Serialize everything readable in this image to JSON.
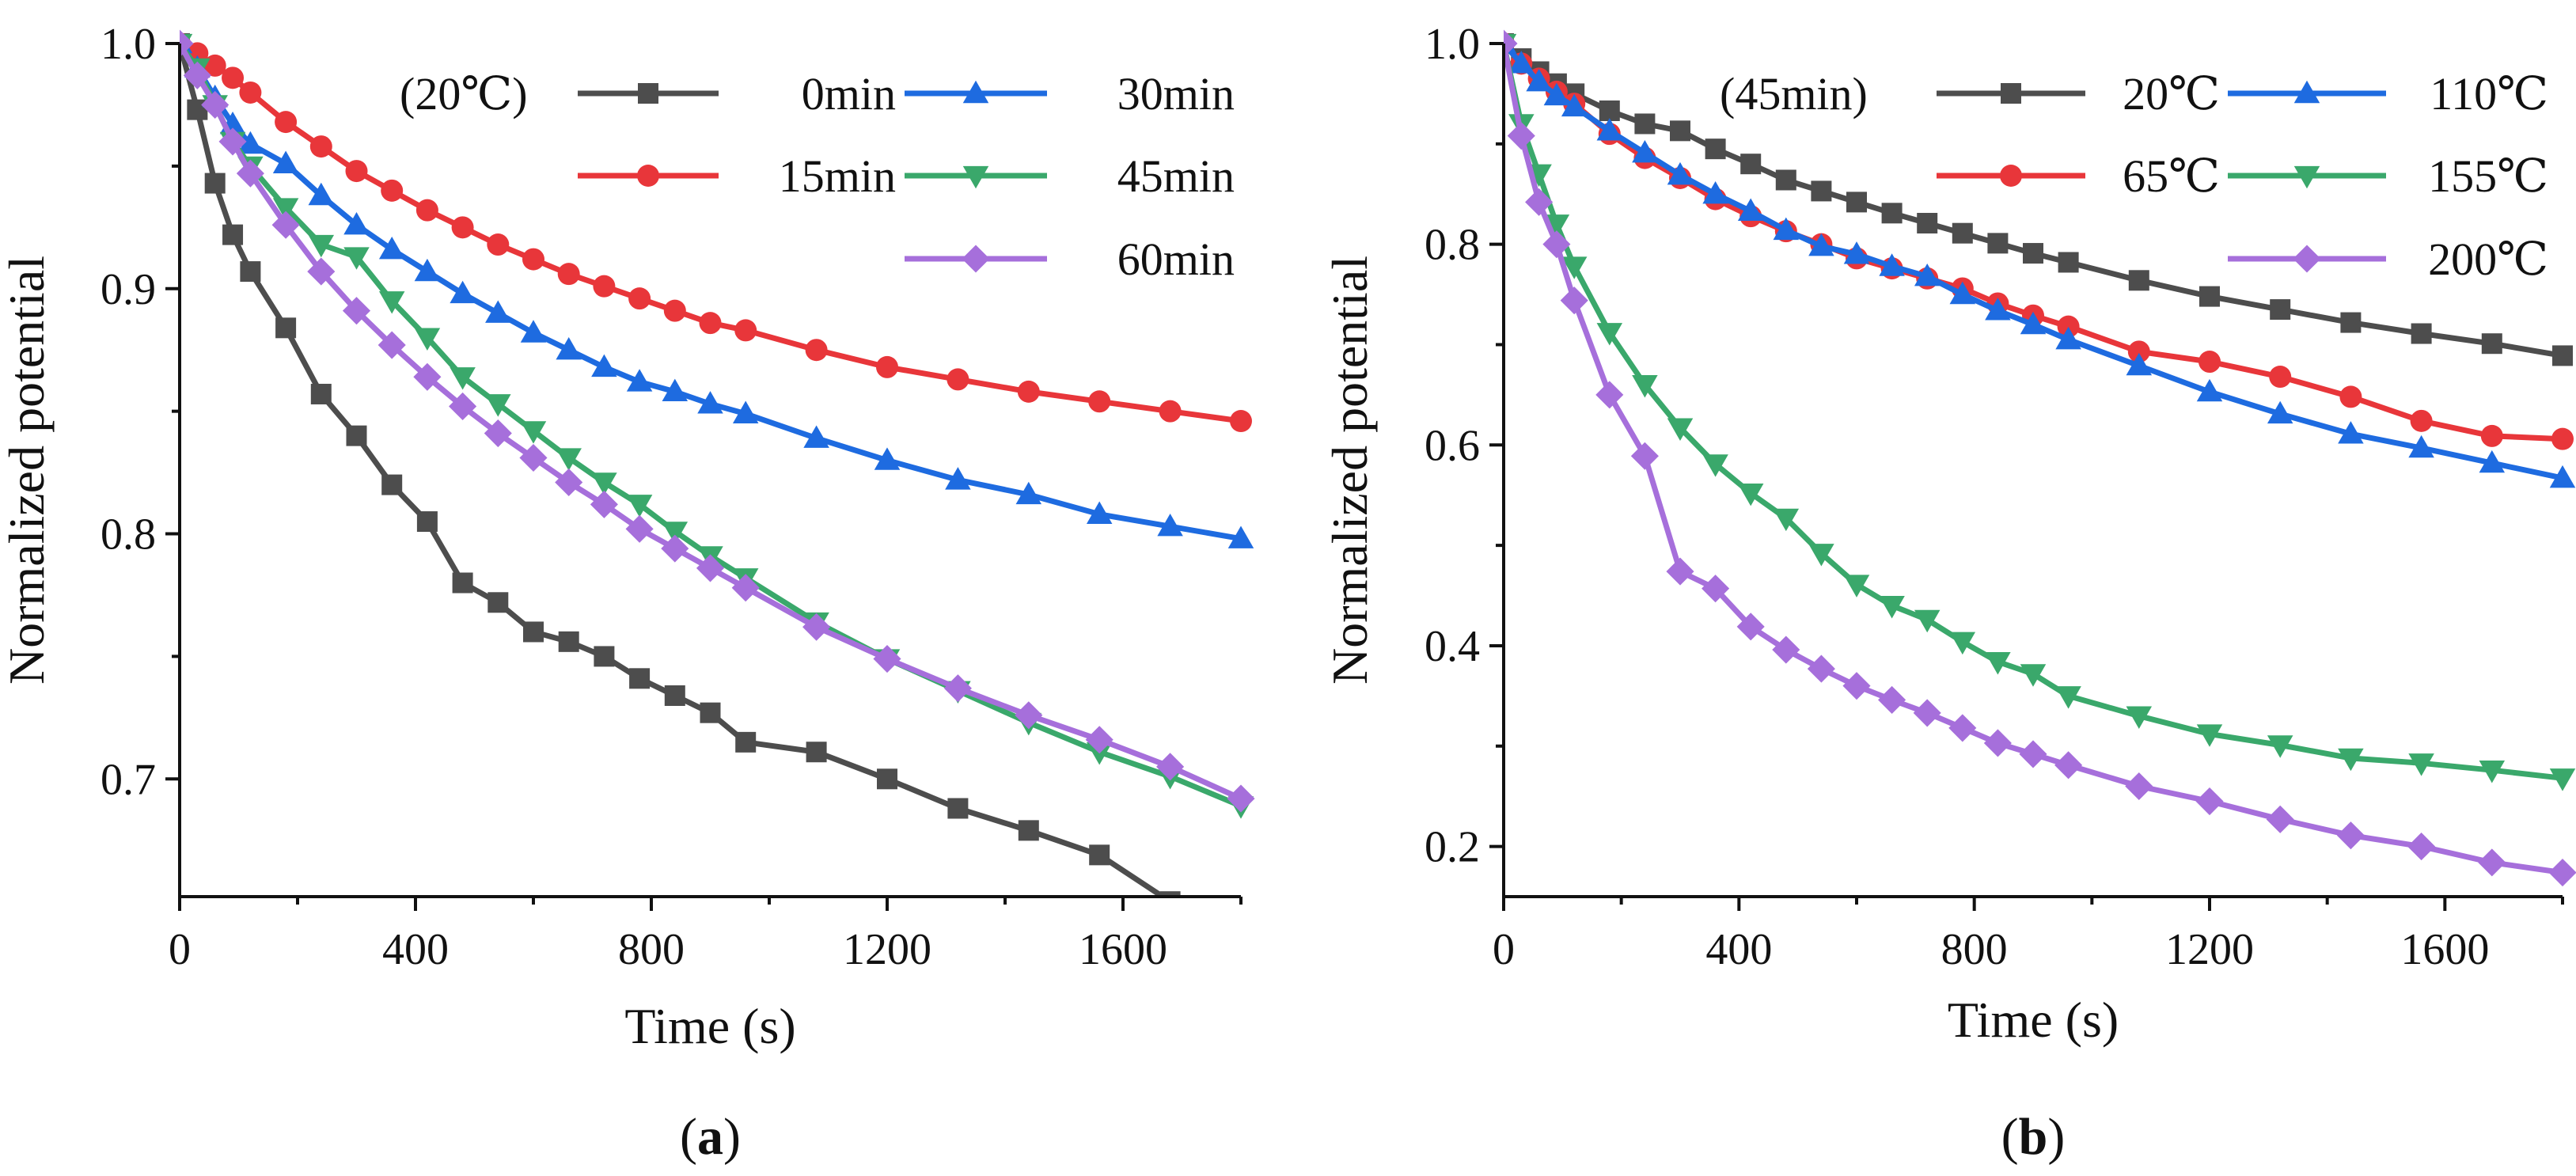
{
  "chart_data": [
    {
      "type": "line",
      "panel_label": "(a)",
      "annotation": "(20℃)",
      "xlabel": "Time (s)",
      "ylabel": "Normalized potential",
      "xlim": [
        0,
        1800
      ],
      "ylim": [
        0.652,
        1.0
      ],
      "xticks": [
        0,
        400,
        800,
        1200,
        1600
      ],
      "xtick_labels": [
        "0",
        "400",
        "800",
        "1200",
        "1600"
      ],
      "yticks": [
        0.7,
        0.8,
        0.9,
        1.0
      ],
      "ytick_labels": [
        "0.7",
        "0.8",
        "0.9",
        "1.0"
      ],
      "legend_position": "top-right",
      "series": [
        {
          "name": "0min",
          "color": "#4d4d4d",
          "marker": "square",
          "x": [
            0,
            30,
            60,
            90,
            120,
            180,
            240,
            300,
            360,
            420,
            480,
            540,
            600,
            660,
            720,
            780,
            840,
            900,
            960,
            1080,
            1200,
            1320,
            1440,
            1560,
            1680
          ],
          "y": [
            1.0,
            0.973,
            0.943,
            0.922,
            0.907,
            0.884,
            0.857,
            0.84,
            0.82,
            0.805,
            0.78,
            0.772,
            0.76,
            0.756,
            0.75,
            0.741,
            0.734,
            0.727,
            0.715,
            0.711,
            0.7,
            0.688,
            0.679,
            0.669,
            0.65
          ]
        },
        {
          "name": "15min",
          "color": "#e8363a",
          "marker": "circle",
          "x": [
            0,
            30,
            60,
            90,
            120,
            180,
            240,
            300,
            360,
            420,
            480,
            540,
            600,
            660,
            720,
            780,
            840,
            900,
            960,
            1080,
            1200,
            1320,
            1440,
            1560,
            1680,
            1800
          ],
          "y": [
            1.0,
            0.996,
            0.991,
            0.986,
            0.98,
            0.968,
            0.958,
            0.948,
            0.94,
            0.932,
            0.925,
            0.918,
            0.912,
            0.906,
            0.901,
            0.896,
            0.891,
            0.886,
            0.883,
            0.875,
            0.868,
            0.863,
            0.858,
            0.854,
            0.85,
            0.846
          ]
        },
        {
          "name": "30min",
          "color": "#1e6be0",
          "marker": "triangle-up",
          "x": [
            0,
            30,
            60,
            90,
            120,
            180,
            240,
            300,
            360,
            420,
            480,
            540,
            600,
            660,
            720,
            780,
            840,
            900,
            960,
            1080,
            1200,
            1320,
            1440,
            1560,
            1680,
            1800
          ],
          "y": [
            1.0,
            0.99,
            0.978,
            0.967,
            0.959,
            0.951,
            0.938,
            0.926,
            0.916,
            0.907,
            0.898,
            0.89,
            0.882,
            0.875,
            0.868,
            0.862,
            0.858,
            0.853,
            0.849,
            0.839,
            0.83,
            0.822,
            0.816,
            0.808,
            0.803,
            0.798
          ]
        },
        {
          "name": "45min",
          "color": "#3aa86b",
          "marker": "triangle-down",
          "x": [
            0,
            30,
            60,
            90,
            120,
            180,
            240,
            300,
            360,
            420,
            480,
            540,
            600,
            660,
            720,
            780,
            840,
            900,
            960,
            1080,
            1200,
            1320,
            1440,
            1560,
            1680,
            1800
          ],
          "y": [
            1.0,
            0.99,
            0.975,
            0.96,
            0.95,
            0.933,
            0.918,
            0.913,
            0.895,
            0.88,
            0.864,
            0.853,
            0.842,
            0.831,
            0.821,
            0.812,
            0.801,
            0.791,
            0.782,
            0.764,
            0.749,
            0.736,
            0.723,
            0.711,
            0.701,
            0.689
          ]
        },
        {
          "name": "60min",
          "color": "#a66fdb",
          "marker": "diamond",
          "x": [
            0,
            30,
            60,
            90,
            120,
            180,
            240,
            300,
            360,
            420,
            480,
            540,
            600,
            660,
            720,
            780,
            840,
            900,
            960,
            1080,
            1200,
            1320,
            1440,
            1560,
            1680,
            1800
          ],
          "y": [
            1.0,
            0.987,
            0.975,
            0.96,
            0.947,
            0.926,
            0.907,
            0.891,
            0.877,
            0.864,
            0.852,
            0.841,
            0.831,
            0.821,
            0.812,
            0.802,
            0.794,
            0.786,
            0.778,
            0.762,
            0.749,
            0.737,
            0.726,
            0.716,
            0.705,
            0.692
          ]
        }
      ]
    },
    {
      "type": "line",
      "panel_label": "(b)",
      "annotation": "(45min)",
      "xlabel": "Time (s)",
      "ylabel": "Normalized potential",
      "xlim": [
        0,
        1800
      ],
      "ylim": [
        0.15,
        1.0
      ],
      "xticks": [
        0,
        400,
        800,
        1200,
        1600
      ],
      "xtick_labels": [
        "0",
        "400",
        "800",
        "1200",
        "1600"
      ],
      "yticks": [
        0.2,
        0.4,
        0.6,
        0.8,
        1.0
      ],
      "ytick_labels": [
        "0.2",
        "0.4",
        "0.6",
        "0.8",
        "1.0"
      ],
      "legend_position": "top-right",
      "series": [
        {
          "name": "20℃",
          "color": "#4d4d4d",
          "marker": "square",
          "x": [
            0,
            30,
            60,
            90,
            120,
            180,
            240,
            300,
            360,
            420,
            480,
            540,
            600,
            660,
            720,
            780,
            840,
            900,
            960,
            1080,
            1200,
            1320,
            1440,
            1560,
            1680,
            1800
          ],
          "y": [
            1.0,
            0.985,
            0.972,
            0.96,
            0.95,
            0.933,
            0.92,
            0.913,
            0.895,
            0.88,
            0.864,
            0.853,
            0.842,
            0.831,
            0.821,
            0.811,
            0.801,
            0.791,
            0.782,
            0.764,
            0.748,
            0.735,
            0.722,
            0.711,
            0.701,
            0.689
          ]
        },
        {
          "name": "65℃",
          "color": "#e8363a",
          "marker": "circle",
          "x": [
            0,
            30,
            60,
            90,
            120,
            180,
            240,
            300,
            360,
            420,
            480,
            540,
            600,
            660,
            720,
            780,
            840,
            900,
            960,
            1080,
            1200,
            1320,
            1440,
            1560,
            1680,
            1800
          ],
          "y": [
            1.0,
            0.98,
            0.965,
            0.952,
            0.94,
            0.91,
            0.886,
            0.866,
            0.845,
            0.828,
            0.813,
            0.8,
            0.786,
            0.776,
            0.766,
            0.756,
            0.741,
            0.729,
            0.718,
            0.693,
            0.683,
            0.668,
            0.648,
            0.624,
            0.609,
            0.606
          ]
        },
        {
          "name": "110℃",
          "color": "#1e6be0",
          "marker": "triangle-up",
          "x": [
            0,
            30,
            60,
            90,
            120,
            180,
            240,
            300,
            360,
            420,
            480,
            540,
            600,
            660,
            720,
            780,
            840,
            900,
            960,
            1080,
            1200,
            1320,
            1440,
            1560,
            1680,
            1800
          ],
          "y": [
            1.0,
            0.98,
            0.962,
            0.948,
            0.937,
            0.913,
            0.891,
            0.869,
            0.85,
            0.833,
            0.814,
            0.798,
            0.79,
            0.778,
            0.768,
            0.75,
            0.734,
            0.72,
            0.705,
            0.679,
            0.653,
            0.631,
            0.611,
            0.597,
            0.582,
            0.567
          ]
        },
        {
          "name": "155℃",
          "color": "#3aa86b",
          "marker": "triangle-down",
          "x": [
            0,
            30,
            60,
            90,
            120,
            180,
            240,
            300,
            360,
            420,
            480,
            540,
            600,
            660,
            720,
            780,
            840,
            900,
            960,
            1080,
            1200,
            1320,
            1440,
            1560,
            1680,
            1800
          ],
          "y": [
            1.0,
            0.92,
            0.87,
            0.82,
            0.778,
            0.712,
            0.66,
            0.617,
            0.581,
            0.552,
            0.527,
            0.492,
            0.461,
            0.44,
            0.426,
            0.404,
            0.384,
            0.372,
            0.35,
            0.33,
            0.312,
            0.301,
            0.288,
            0.283,
            0.276,
            0.268
          ]
        },
        {
          "name": "200℃",
          "color": "#a66fdb",
          "marker": "diamond",
          "x": [
            0,
            30,
            60,
            90,
            120,
            180,
            240,
            300,
            360,
            420,
            480,
            540,
            600,
            660,
            720,
            780,
            840,
            900,
            960,
            1080,
            1200,
            1320,
            1440,
            1560,
            1680,
            1800
          ],
          "y": [
            1.0,
            0.908,
            0.842,
            0.8,
            0.744,
            0.65,
            0.589,
            0.474,
            0.457,
            0.419,
            0.396,
            0.377,
            0.36,
            0.346,
            0.333,
            0.318,
            0.303,
            0.292,
            0.281,
            0.26,
            0.245,
            0.227,
            0.211,
            0.2,
            0.184,
            0.174
          ]
        }
      ]
    }
  ]
}
